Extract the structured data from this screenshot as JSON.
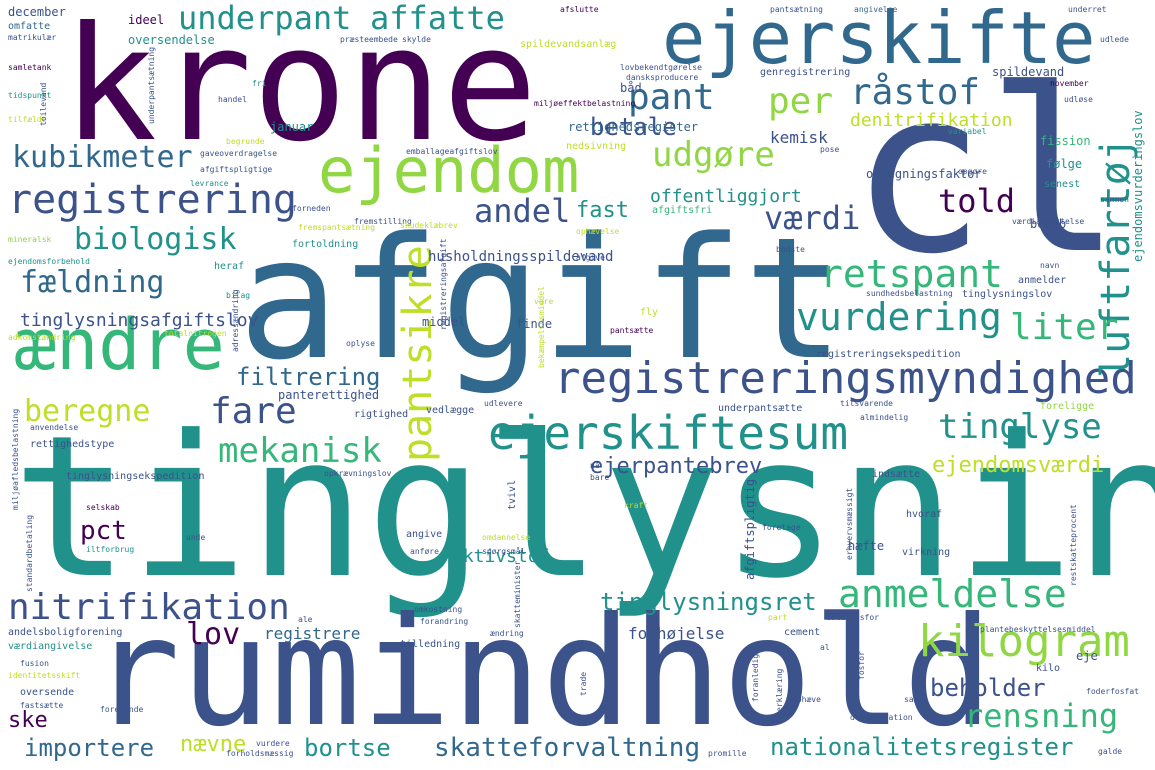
{
  "palette": {
    "dark_purple": "#440154",
    "indigo": "#3b528b",
    "blue": "#31688e",
    "teal": "#21918c",
    "green": "#35b779",
    "lime": "#90d743",
    "yellow": "#bddf26"
  },
  "words": [
    "krone",
    "cl",
    "afgift",
    "tinglysning",
    "rumindhold",
    "ejerskifte",
    "ejendom",
    "ændre",
    "registreringsmyndighed",
    "luftfartøj",
    "pantsikre",
    "ejerskiftesum",
    "retspant",
    "registrering",
    "underpant",
    "affatte",
    "kubikmeter",
    "biologisk",
    "fældning",
    "pant",
    "råstof",
    "udgøre",
    "per",
    "told",
    "andel",
    "værdi",
    "fast",
    "vurdering",
    "liter",
    "kilogram",
    "anmeldelse",
    "tinglyse",
    "nitrifikation",
    "mekanisk",
    "fare",
    "filtrering",
    "beregne",
    "rensning",
    "nationalitetsregister",
    "skatteforvaltning",
    "bortse",
    "importere",
    "lov",
    "tinglysningsret",
    "beholder",
    "betale",
    "kemisk",
    "denitrifikation",
    "offentliggjort",
    "ejendomsværdi",
    "ejerpantebrev",
    "pct",
    "tinglysningsafgiftslov",
    "husholdningsspildevand",
    "aktivstof",
    "ske",
    "nævne",
    "forhøjelse",
    "registrere",
    "spildevand",
    "fission",
    "omregningsfaktor",
    "rettighedsregister",
    "januar",
    "oversendelse",
    "ideel",
    "december",
    "omfatte",
    "matrikulær",
    "samletank",
    "tidspunkt",
    "tilfælde",
    "handel",
    "fri",
    "båd",
    "lovbekendtgørelse",
    "genregistrering",
    "miljøeffektbelastning",
    "underret",
    "udlede",
    "november",
    "udløse",
    "variabel",
    "pose",
    "følge",
    "senest",
    "beløb",
    "navn",
    "anmelder",
    "sundhedsbelastning",
    "tinglysningslov",
    "registreringsekspedition",
    "foreligge",
    "rettighedstype",
    "anvendelse",
    "adkomstændring",
    "bilag",
    "heraf",
    "fortoldning",
    "forneden",
    "fremstilling",
    "mineralsk",
    "ejendomsforbehold",
    "spildevandsanlæg",
    "skylde",
    "præsteembede",
    "afslutte",
    "pantsætning",
    "angivelse",
    "dansksproducere",
    "emballageafgiftslov",
    "afgiftspligtige",
    "gaveoverdragelse",
    "begrunde",
    "levrance",
    "nedsivning",
    "afgiftsfri",
    "opgøre",
    "værdiansættelse",
    "ophævelse",
    "bedste",
    "fly",
    "finde",
    "middel",
    "pantsætte",
    "vare",
    "oplyse",
    "totalnitrogen",
    "panterettighed",
    "rigtighed",
    "vedlægge",
    "udlevere",
    "underpantsætte",
    "tilsvarende",
    "almindelig",
    "tinglysningsekspedition",
    "opkrævningslov",
    "indsætte",
    "bare",
    "nå",
    "kraft",
    "hvoraf",
    "tvivl",
    "afgiftspligtig",
    "selskab",
    "iltforbrug",
    "unde",
    "angive",
    "anføre",
    "spørgsmål",
    "omdannelse",
    "foretage",
    "virkning",
    "hæfte",
    "restskatteprocent",
    "omkostning",
    "forandring",
    "ændring",
    "tilledning",
    "cement",
    "totalfosfor",
    "plantebeskyttelsesmiddel",
    "al",
    "kilo",
    "eje",
    "andelsboligforening",
    "værdiangivelse",
    "fusion",
    "identitetsskift",
    "oversende",
    "fastsætte",
    "forefinde",
    "forholdsmæssig",
    "vurdere",
    "promille",
    "dokumentation",
    "galde",
    "foderfosfat",
    "samle",
    "skøn",
    "trade",
    "fosfor",
    "foranledige",
    "erklæring",
    "ophæve",
    "erhvervsmæssigt",
    "skatteminister",
    "standardbetaling",
    "miljøafledsbelastning",
    "adressændring",
    "toilevand",
    "underpantsætning",
    "ejendomsvurderingslov",
    "bekæmpelsesmiddel",
    "part",
    "registreringsafgift",
    "skudeklæbrev",
    "sammen",
    "fremspantsætning",
    "afgive",
    "ale"
  ]
}
